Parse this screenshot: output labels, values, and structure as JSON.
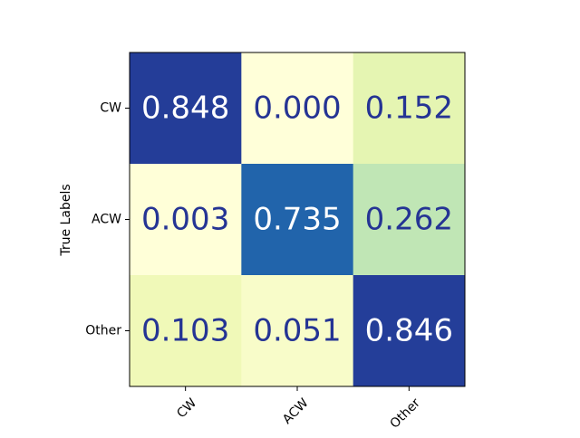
{
  "chart_data": {
    "type": "heatmap",
    "title": "",
    "xlabel": "",
    "ylabel": "True Labels",
    "x_categories": [
      "CW",
      "ACW",
      "Other"
    ],
    "y_categories": [
      "CW",
      "ACW",
      "Other"
    ],
    "values": [
      [
        0.848,
        0.0,
        0.152
      ],
      [
        0.003,
        0.735,
        0.262
      ],
      [
        0.103,
        0.051,
        0.846
      ]
    ],
    "value_format": "3 decimals",
    "colormap": "YlGnBu",
    "vmin": 0.0,
    "vmax": 1.0,
    "grid": false,
    "x_tick_rotation_deg": 45
  }
}
